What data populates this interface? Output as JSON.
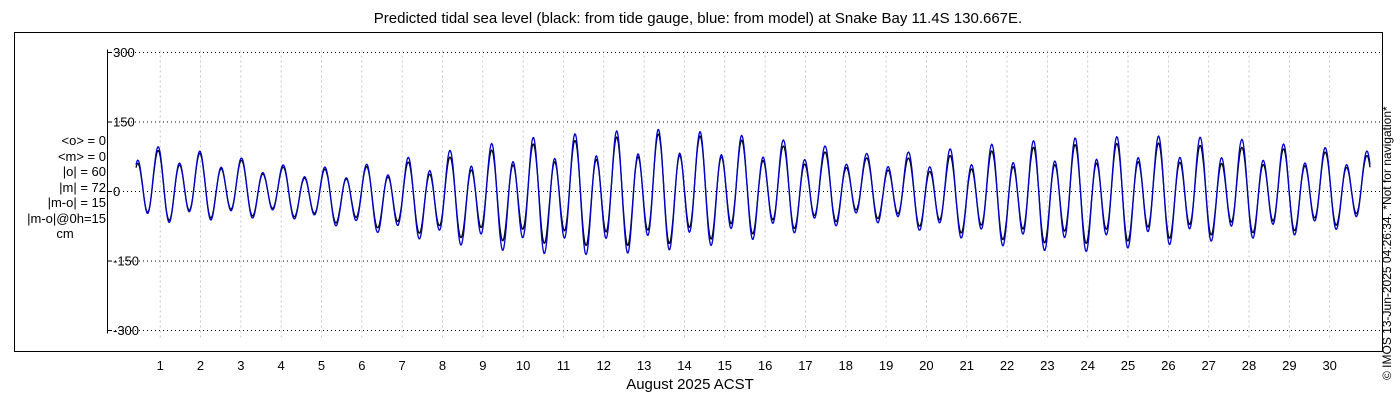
{
  "chart_data": {
    "type": "line",
    "title": "Predicted tidal sea level (black: from tide gauge, blue: from model) at Snake Bay 11.4S 130.667E.",
    "xlabel": "August 2025 ACST",
    "ylabel": "",
    "ylim": [
      -315,
      315
    ],
    "xlim": [
      0.4,
      31.0
    ],
    "yticks": [
      300,
      150,
      0,
      -150,
      -300
    ],
    "ytick_labels": [
      "300",
      "150",
      "0",
      "-150",
      "-300"
    ],
    "xticks": [
      1,
      2,
      3,
      4,
      5,
      6,
      7,
      8,
      9,
      10,
      11,
      12,
      13,
      14,
      15,
      16,
      17,
      18,
      19,
      20,
      21,
      22,
      23,
      24,
      25,
      26,
      27,
      28,
      29,
      30
    ],
    "xtick_labels": [
      "1",
      "2",
      "3",
      "4",
      "5",
      "6",
      "7",
      "8",
      "9",
      "10",
      "11",
      "12",
      "13",
      "14",
      "15",
      "16",
      "17",
      "18",
      "19",
      "20",
      "21",
      "22",
      "23",
      "24",
      "25",
      "26",
      "27",
      "28",
      "29",
      "30"
    ],
    "grid": true,
    "series": [
      {
        "name": "tide gauge",
        "color": "#000000",
        "description": "semi-diurnal tidal prediction, amplitude varies with spring/neap cycle",
        "daily_range": [
          {
            "day": 0.4,
            "high": 95,
            "low": -75
          },
          {
            "day": 2,
            "high": 85,
            "low": -65
          },
          {
            "day": 4,
            "high": 55,
            "low": -55
          },
          {
            "day": 5,
            "high": 50,
            "low": -70
          },
          {
            "day": 6,
            "high": 55,
            "low": -80
          },
          {
            "day": 8,
            "high": 75,
            "low": -105
          },
          {
            "day": 10,
            "high": 105,
            "low": -120
          },
          {
            "day": 12,
            "high": 120,
            "low": -130
          },
          {
            "day": 13.5,
            "high": 130,
            "low": -125
          },
          {
            "day": 15,
            "high": 120,
            "low": -110
          },
          {
            "day": 17,
            "high": 95,
            "low": -85
          },
          {
            "day": 18.5,
            "high": 75,
            "low": -60
          },
          {
            "day": 20,
            "high": 75,
            "low": -85
          },
          {
            "day": 22,
            "high": 95,
            "low": -115
          },
          {
            "day": 23.5,
            "high": 105,
            "low": -125
          },
          {
            "day": 25.5,
            "high": 110,
            "low": -115
          },
          {
            "day": 27.5,
            "high": 100,
            "low": -100
          },
          {
            "day": 29,
            "high": 95,
            "low": -95
          },
          {
            "day": 31,
            "high": 80,
            "low": -70
          }
        ]
      },
      {
        "name": "model",
        "color": "#0000cc",
        "description": "semi-diurnal tidal prediction from model, slightly larger amplitude than gauge",
        "daily_range": [
          {
            "day": 0.4,
            "high": 105,
            "low": -80
          },
          {
            "day": 2,
            "high": 90,
            "low": -70
          },
          {
            "day": 4,
            "high": 60,
            "low": -60
          },
          {
            "day": 5,
            "high": 55,
            "low": -75
          },
          {
            "day": 6,
            "high": 60,
            "low": -90
          },
          {
            "day": 8,
            "high": 90,
            "low": -120
          },
          {
            "day": 10,
            "high": 120,
            "low": -145
          },
          {
            "day": 12,
            "high": 135,
            "low": -150
          },
          {
            "day": 13.5,
            "high": 140,
            "low": -140
          },
          {
            "day": 15,
            "high": 130,
            "low": -125
          },
          {
            "day": 17,
            "high": 110,
            "low": -95
          },
          {
            "day": 18.5,
            "high": 85,
            "low": -70
          },
          {
            "day": 20,
            "high": 90,
            "low": -95
          },
          {
            "day": 22,
            "high": 110,
            "low": -130
          },
          {
            "day": 23.5,
            "high": 120,
            "low": -145
          },
          {
            "day": 25.5,
            "high": 125,
            "low": -130
          },
          {
            "day": 27.5,
            "high": 120,
            "low": -115
          },
          {
            "day": 29,
            "high": 105,
            "low": -105
          },
          {
            "day": 31,
            "high": 90,
            "low": -80
          }
        ]
      }
    ]
  },
  "stats": {
    "mean_obs": "<o> = 0",
    "mean_model": "<m> = 0",
    "abs_obs": "|o| = 60",
    "abs_model": "|m| = 72",
    "abs_diff": "|m-o| = 15",
    "abs_diff_0h": "|m-o|@0h=15",
    "unit": "cm"
  },
  "side_note": "© IMOS 13-Jun-2025 04:26:34. *Not for navigation*"
}
